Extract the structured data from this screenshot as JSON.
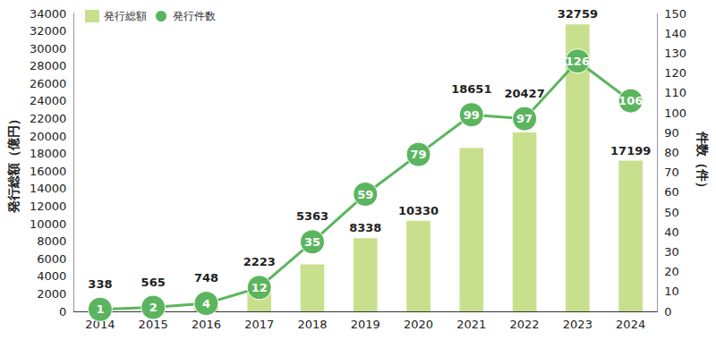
{
  "chart_data": {
    "type": "bar",
    "categories": [
      "2014",
      "2015",
      "2016",
      "2017",
      "2018",
      "2019",
      "2020",
      "2021",
      "2022",
      "2023",
      "2024"
    ],
    "series": [
      {
        "name": "発行総額",
        "type": "bar",
        "axis": "y",
        "color": "#c8e08e",
        "values": [
          338,
          565,
          748,
          2223,
          5363,
          8338,
          10330,
          18651,
          20427,
          32759,
          17199
        ]
      },
      {
        "name": "発行件数",
        "type": "line",
        "axis": "y2",
        "marker": "circle",
        "color": "#5bb55e",
        "values": [
          1,
          2,
          4,
          12,
          35,
          59,
          79,
          99,
          97,
          126,
          106
        ]
      }
    ],
    "ylabel": "発行総額（億円）",
    "y2label": "件数（件）",
    "ylim": [
      0,
      34000
    ],
    "yticks": [
      0,
      2000,
      4000,
      6000,
      8000,
      10000,
      12000,
      14000,
      16000,
      18000,
      20000,
      22000,
      24000,
      26000,
      28000,
      30000,
      32000,
      34000
    ],
    "y2lim": [
      0,
      150
    ],
    "y2ticks": [
      0,
      10,
      20,
      30,
      40,
      50,
      60,
      70,
      80,
      90,
      100,
      110,
      120,
      130,
      140,
      150
    ],
    "data_labels": true,
    "legend": "top-left",
    "grid": false
  }
}
